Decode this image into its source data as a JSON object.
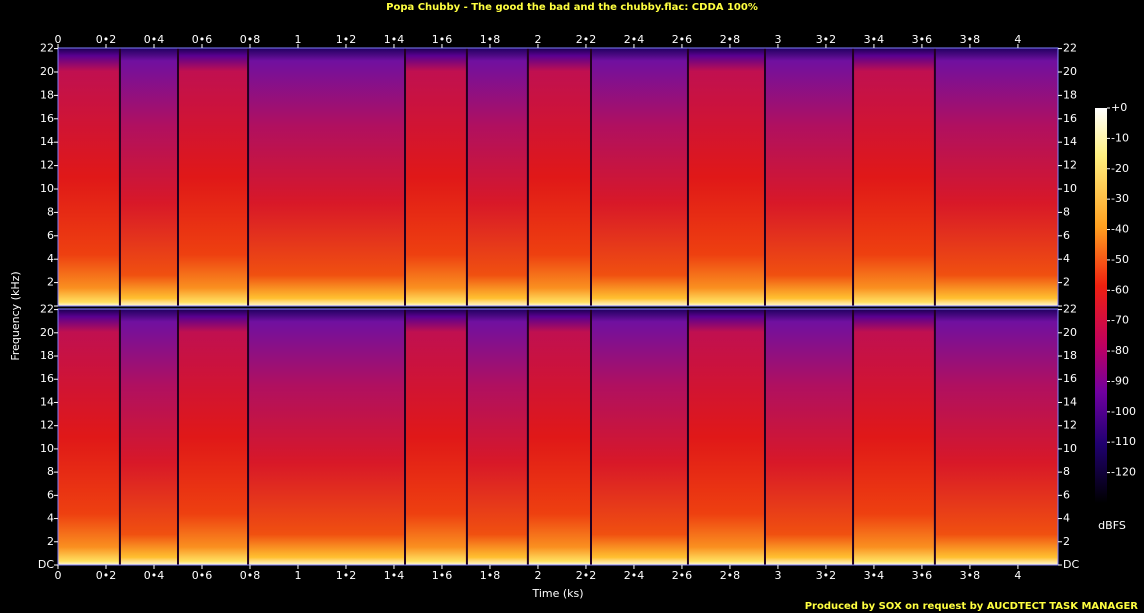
{
  "chart_data": {
    "type": "spectrogram",
    "title": "Popa Chubby - The good the bad and the chubby.flac: CDDA 100%",
    "xlabel": "Time (ks)",
    "ylabel": "Frequency (kHz)",
    "footer": "Produced by SOX on request by AUCDTECT TASK MANAGER",
    "colorbar_label": "dBFS",
    "channels": 2,
    "xlim": [
      0,
      4.167
    ],
    "xticks": [
      0,
      {
        "value": 0.2,
        "label": "0•2"
      },
      {
        "value": 0.4,
        "label": "0•4"
      },
      {
        "value": 0.6,
        "label": "0•6"
      },
      {
        "value": 0.8,
        "label": "0•8"
      },
      1,
      {
        "value": 1.2,
        "label": "1•2"
      },
      {
        "value": 1.4,
        "label": "1•4"
      },
      {
        "value": 1.6,
        "label": "1•6"
      },
      {
        "value": 1.8,
        "label": "1•8"
      },
      2,
      {
        "value": 2.2,
        "label": "2•2"
      },
      {
        "value": 2.4,
        "label": "2•4"
      },
      {
        "value": 2.6,
        "label": "2•6"
      },
      {
        "value": 2.8,
        "label": "2•8"
      },
      3,
      {
        "value": 3.2,
        "label": "3•2"
      },
      {
        "value": 3.4,
        "label": "3•4"
      },
      {
        "value": 3.6,
        "label": "3•6"
      },
      {
        "value": 3.8,
        "label": "3•8"
      },
      4
    ],
    "ylim": [
      0,
      22.05
    ],
    "yticks": [
      {
        "value": 0,
        "label": "DC"
      },
      2,
      4,
      6,
      8,
      10,
      12,
      14,
      16,
      18,
      20,
      22
    ],
    "zlim": [
      -130,
      0
    ],
    "zticks": [
      {
        "value": 0,
        "label": "+0"
      },
      -10,
      -20,
      -30,
      -40,
      -50,
      -60,
      -70,
      -80,
      -90,
      -100,
      -110,
      -120
    ],
    "track_starts": [
      0,
      0.258,
      0.5,
      0.792,
      1.446,
      1.704,
      1.958,
      2.221,
      2.625,
      2.946,
      3.313,
      3.654
    ]
  }
}
